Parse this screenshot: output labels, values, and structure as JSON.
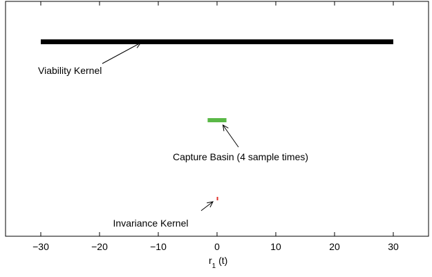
{
  "chart_data": {
    "type": "interval",
    "title": "",
    "xlabel": {
      "main": "r",
      "sub": "1",
      "tail": " (t)"
    },
    "ylabel": "",
    "xlim": [
      -36,
      36
    ],
    "xticks": [
      {
        "value": -30,
        "label": "−30"
      },
      {
        "value": -20,
        "label": "−20"
      },
      {
        "value": -10,
        "label": "−10"
      },
      {
        "value": 0,
        "label": "0"
      },
      {
        "value": 10,
        "label": "10"
      },
      {
        "value": 20,
        "label": "20"
      },
      {
        "value": 30,
        "label": "30"
      }
    ],
    "grid": false,
    "series": [
      {
        "name": "Viability Kernel",
        "x_start": -30,
        "x_end": 30,
        "color": "#000000"
      },
      {
        "name": "Capture Basin (4 sample times)",
        "x_start": -1.6,
        "x_end": 1.6,
        "color": "#5ab847"
      },
      {
        "name": "Invariance Kernel",
        "x_start": -0.05,
        "x_end": 0.05,
        "color": "#e0302a"
      }
    ],
    "annotations": [
      {
        "text": "Viability Kernel",
        "target_x": -13
      },
      {
        "text": "Capture Basin (4 sample times)",
        "target_x": 1.0
      },
      {
        "text": "Invariance Kernel",
        "target_x": -0.7
      }
    ]
  }
}
